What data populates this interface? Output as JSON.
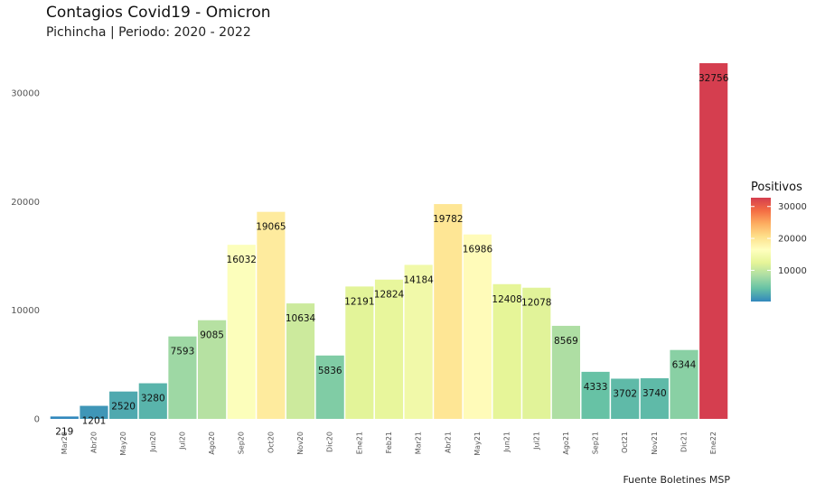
{
  "chart_data": {
    "type": "bar",
    "title": "Contagios Covid19 - Omicron",
    "subtitle": "Pichincha | Periodo: 2020 - 2022",
    "caption": "Fuente Boletines MSP",
    "categories": [
      "Mar20",
      "Abr20",
      "May20",
      "Jun20",
      "Jul20",
      "Ago20",
      "Sep20",
      "Oct20",
      "Nov20",
      "Dic20",
      "Ene21",
      "Feb21",
      "Mar21",
      "Abr21",
      "May21",
      "Jun21",
      "Jul21",
      "Ago21",
      "Sep21",
      "Oct21",
      "Nov21",
      "Dic21",
      "Ene22"
    ],
    "values": [
      219,
      1201,
      2520,
      3280,
      7593,
      9085,
      16032,
      19065,
      10634,
      5836,
      12191,
      12824,
      14184,
      19782,
      16986,
      12408,
      12078,
      8569,
      4333,
      3702,
      3740,
      6344,
      32756
    ],
    "ylim": [
      0,
      32756
    ],
    "yticks": [
      0,
      10000,
      20000,
      30000
    ],
    "grid": false,
    "legend": {
      "title": "Positivos",
      "position": "right",
      "ticks": [
        10000,
        20000,
        30000
      ]
    },
    "colorscale": [
      "#3288bd",
      "#66c2a5",
      "#abdda4",
      "#e6f598",
      "#ffffbf",
      "#fee08b",
      "#fdae61",
      "#f46d43",
      "#d53e4f"
    ]
  }
}
